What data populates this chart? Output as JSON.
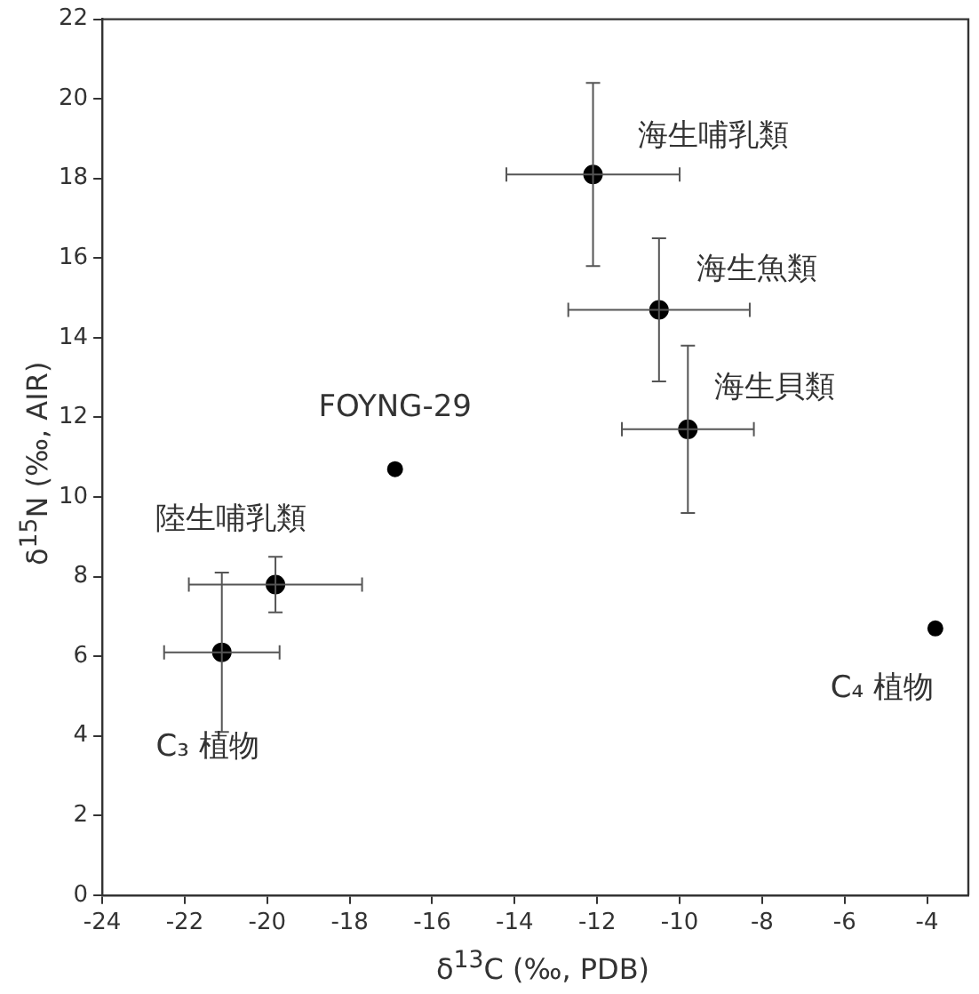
{
  "chart_data": {
    "type": "scatter",
    "xlabel": "δ$^{13}$C (‰, PDB)",
    "ylabel": "δ$^{15}$N (‰, AIR)",
    "xlim": [
      -24,
      -3
    ],
    "xticks": [
      -24,
      -22,
      -20,
      -18,
      -16,
      -14,
      -12,
      -10,
      -8,
      -6,
      -4
    ],
    "ylim": [
      0,
      22
    ],
    "yticks": [
      0,
      2,
      4,
      6,
      8,
      10,
      12,
      14,
      16,
      18,
      20,
      22
    ],
    "grid": false,
    "legend": false,
    "marker": "circle",
    "series": [
      {
        "name": "海生哺乳類",
        "color": "#000000",
        "x": [
          -12.1
        ],
        "values": [
          18.1
        ],
        "errors": [
          [
            15.8,
            20.4
          ]
        ],
        "xerrors": [
          [
            -14.2,
            -10.0
          ]
        ]
      },
      {
        "name": "海生魚類",
        "color": "#000000",
        "x": [
          -10.5
        ],
        "values": [
          14.7
        ],
        "errors": [
          [
            12.9,
            16.5
          ]
        ],
        "xerrors": [
          [
            -12.7,
            -8.3
          ]
        ]
      },
      {
        "name": "海生貝類",
        "color": "#000000",
        "x": [
          -9.8
        ],
        "values": [
          11.7
        ],
        "errors": [
          [
            9.6,
            13.8
          ]
        ],
        "xerrors": [
          [
            -11.4,
            -8.2
          ]
        ]
      },
      {
        "name": "FOYNG-29",
        "color": "#000000",
        "x": [
          -16.9
        ],
        "values": [
          10.7
        ]
      },
      {
        "name": "陸生哺乳類",
        "color": "#000000",
        "x": [
          -19.8
        ],
        "values": [
          7.8
        ],
        "errors": [
          [
            7.1,
            8.5
          ]
        ],
        "xerrors": [
          [
            -21.9,
            -17.7
          ]
        ]
      },
      {
        "name": "C₃ 植物",
        "color": "#000000",
        "x": [
          -21.1
        ],
        "values": [
          6.1
        ],
        "errors": [
          [
            4.1,
            8.1
          ]
        ],
        "xerrors": [
          [
            -22.5,
            -19.7
          ]
        ]
      },
      {
        "name": "C₄ 植物",
        "color": "#000000",
        "x": [
          -3.8
        ],
        "values": [
          6.7
        ]
      }
    ]
  }
}
